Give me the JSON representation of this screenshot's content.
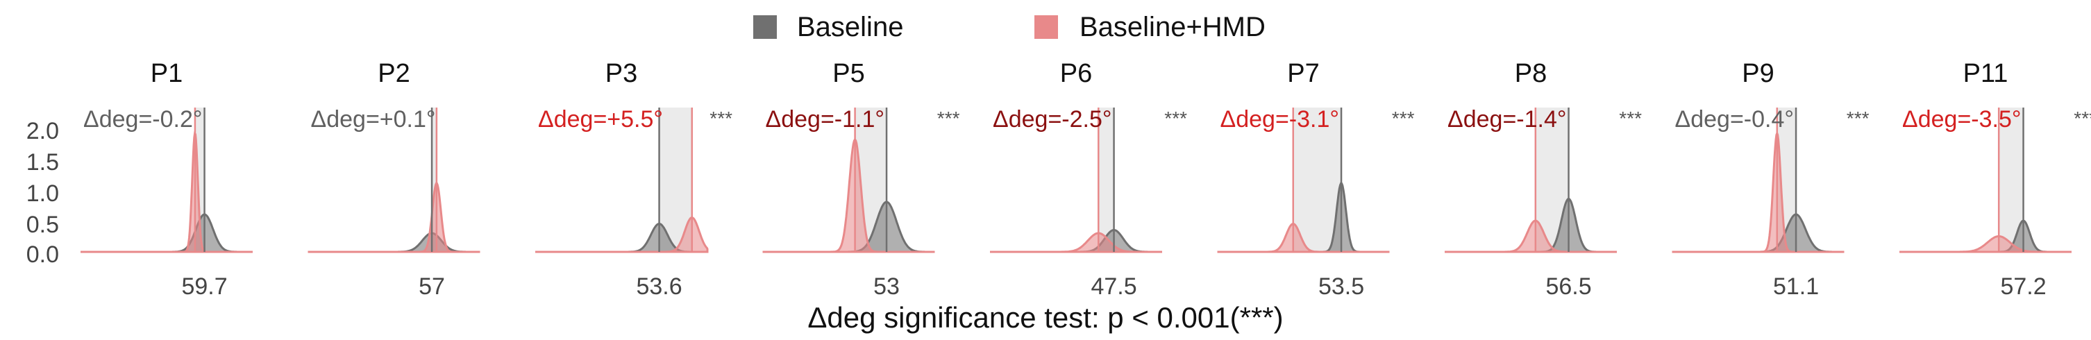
{
  "legend": {
    "items": [
      {
        "label": "Baseline",
        "color": "#707070"
      },
      {
        "label": "Baseline+HMD",
        "color": "#e8898a"
      }
    ]
  },
  "footer": {
    "caption": "Δdeg significance test: p < 0.001(***)"
  },
  "colors": {
    "baseline": "#707070",
    "hmd": "#e8898a",
    "delta_red": "#d42020",
    "delta_darkred": "#8b1010",
    "delta_gray": "#606060",
    "band": "#ebebeb"
  },
  "chart_data": {
    "type": "area",
    "y_ticks": [
      "2.0",
      "1.5",
      "1.0",
      "0.5",
      "0.0"
    ],
    "ylim": [
      0,
      2.0
    ],
    "significance_marker": "***",
    "panels": [
      {
        "title": "P1",
        "x_label": "59.7",
        "delta": "Δdeg=-0.2°",
        "delta_color": "gray",
        "sig": false,
        "baseline": {
          "mean": 59.7,
          "sd": 0.18,
          "peak": 0.6
        },
        "hmd": {
          "mean": 59.5,
          "sd": 0.06,
          "peak": 1.9
        }
      },
      {
        "title": "P2",
        "x_label": "57",
        "delta": "Δdeg=+0.1°",
        "delta_color": "gray",
        "sig": false,
        "baseline": {
          "mean": 57.0,
          "sd": 0.2,
          "peak": 0.3
        },
        "hmd": {
          "mean": 57.1,
          "sd": 0.09,
          "peak": 1.1
        }
      },
      {
        "title": "P3",
        "x_label": "53.6",
        "delta": "Δdeg=+5.5°",
        "delta_color": "red",
        "sig": true,
        "baseline": {
          "mean": 53.6,
          "sd": 1.4,
          "peak": 0.45
        },
        "hmd": {
          "mean": 59.1,
          "sd": 1.2,
          "peak": 0.55
        }
      },
      {
        "title": "P5",
        "x_label": "53",
        "delta": "Δdeg=-1.1°",
        "delta_color": "darkred",
        "sig": true,
        "baseline": {
          "mean": 53.0,
          "sd": 0.35,
          "peak": 0.8
        },
        "hmd": {
          "mean": 51.9,
          "sd": 0.2,
          "peak": 1.8
        }
      },
      {
        "title": "P6",
        "x_label": "47.5",
        "delta": "Δdeg=-2.5°",
        "delta_color": "darkred",
        "sig": true,
        "baseline": {
          "mean": 47.5,
          "sd": 1.5,
          "peak": 0.35
        },
        "hmd": {
          "mean": 45.0,
          "sd": 1.7,
          "peak": 0.3
        }
      },
      {
        "title": "P7",
        "x_label": "53.5",
        "delta": "Δdeg=-3.1°",
        "delta_color": "red",
        "sig": true,
        "baseline": {
          "mean": 53.5,
          "sd": 0.3,
          "peak": 1.1
        },
        "hmd": {
          "mean": 50.4,
          "sd": 0.45,
          "peak": 0.45
        }
      },
      {
        "title": "P8",
        "x_label": "56.5",
        "delta": "Δdeg=-1.4°",
        "delta_color": "darkred",
        "sig": true,
        "baseline": {
          "mean": 56.5,
          "sd": 0.3,
          "peak": 0.85
        },
        "hmd": {
          "mean": 55.1,
          "sd": 0.35,
          "peak": 0.5
        }
      },
      {
        "title": "P9",
        "x_label": "51.1",
        "delta": "Δdeg=-0.4°",
        "delta_color": "gray",
        "sig": true,
        "baseline": {
          "mean": 51.1,
          "sd": 0.2,
          "peak": 0.6
        },
        "hmd": {
          "mean": 50.7,
          "sd": 0.08,
          "peak": 1.9
        }
      },
      {
        "title": "P11",
        "x_label": "57.2",
        "delta": "Δdeg=-3.5°",
        "delta_color": "red",
        "sig": true,
        "baseline": {
          "mean": 57.2,
          "sd": 0.9,
          "peak": 0.5
        },
        "hmd": {
          "mean": 53.7,
          "sd": 1.6,
          "peak": 0.25
        }
      }
    ]
  }
}
